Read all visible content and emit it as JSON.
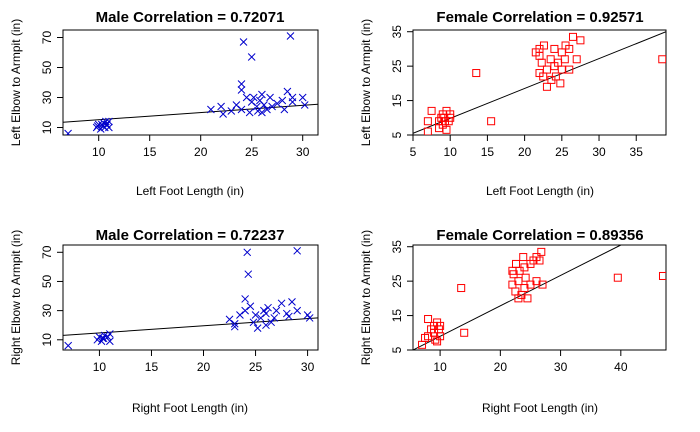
{
  "chart_data": [
    {
      "type": "scatter",
      "title": "Male Correlation = 0.72071",
      "xlabel": "Left Foot Length (in)",
      "ylabel": "Left Elbow to Armpit (in)",
      "xlim": [
        6.5,
        31.5
      ],
      "ylim": [
        5,
        75
      ],
      "xticks": [
        10,
        15,
        20,
        25,
        30
      ],
      "yticks": [
        10,
        30,
        50,
        70
      ],
      "marker": "x",
      "color": "#0000cc",
      "points": [
        [
          7,
          6
        ],
        [
          9.8,
          10
        ],
        [
          10,
          12
        ],
        [
          10.2,
          9
        ],
        [
          10.4,
          11
        ],
        [
          10.5,
          13
        ],
        [
          10.6,
          10
        ],
        [
          10.8,
          12
        ],
        [
          11,
          14
        ],
        [
          11,
          10
        ],
        [
          10.3,
          12
        ],
        [
          9.9,
          11
        ],
        [
          10.7,
          14
        ],
        [
          21,
          22
        ],
        [
          22,
          24
        ],
        [
          22.2,
          19
        ],
        [
          23,
          21
        ],
        [
          23.5,
          25
        ],
        [
          24,
          22
        ],
        [
          24,
          35
        ],
        [
          24,
          39
        ],
        [
          24.2,
          67
        ],
        [
          24.5,
          30
        ],
        [
          24.8,
          20
        ],
        [
          25,
          27
        ],
        [
          25,
          57
        ],
        [
          25.2,
          30
        ],
        [
          25.5,
          24
        ],
        [
          25.6,
          21
        ],
        [
          25.8,
          28
        ],
        [
          26,
          32
        ],
        [
          26,
          20
        ],
        [
          26.2,
          25
        ],
        [
          26.5,
          22
        ],
        [
          26.8,
          30
        ],
        [
          27,
          24
        ],
        [
          27.5,
          26
        ],
        [
          28,
          28
        ],
        [
          28.2,
          22
        ],
        [
          28.5,
          34
        ],
        [
          28.8,
          71
        ],
        [
          29,
          30
        ],
        [
          29,
          27
        ],
        [
          30,
          30
        ],
        [
          30.2,
          25
        ]
      ],
      "fit": [
        [
          6.5,
          13.5
        ],
        [
          31.5,
          25.5
        ]
      ]
    },
    {
      "type": "scatter",
      "title": "Female Correlation = 0.92571",
      "xlabel": "Left Foot Length (in)",
      "ylabel": "Left Elbow to Armpit (in)",
      "xlim": [
        5,
        39
      ],
      "ylim": [
        5,
        35.5
      ],
      "xticks": [
        5,
        10,
        15,
        20,
        25,
        30,
        35
      ],
      "yticks": [
        5,
        15,
        25,
        35
      ],
      "marker": "square",
      "color": "#ff0000",
      "points": [
        [
          7,
          6
        ],
        [
          7,
          9
        ],
        [
          7.5,
          12
        ],
        [
          8.5,
          9
        ],
        [
          8.5,
          7
        ],
        [
          9,
          11
        ],
        [
          9,
          8
        ],
        [
          9.2,
          10
        ],
        [
          9.3,
          9
        ],
        [
          9.5,
          6.5
        ],
        [
          9.5,
          12
        ],
        [
          9.8,
          9
        ],
        [
          10,
          10
        ],
        [
          10,
          11
        ],
        [
          8.8,
          10
        ],
        [
          13.5,
          23
        ],
        [
          15.5,
          9
        ],
        [
          21.5,
          29
        ],
        [
          22,
          28
        ],
        [
          22,
          30
        ],
        [
          22,
          23
        ],
        [
          22.3,
          26
        ],
        [
          22.5,
          22
        ],
        [
          22.6,
          31
        ],
        [
          23,
          24
        ],
        [
          23,
          19
        ],
        [
          23.5,
          27
        ],
        [
          23.6,
          21
        ],
        [
          24,
          25
        ],
        [
          24,
          30
        ],
        [
          24.2,
          22
        ],
        [
          24.5,
          26
        ],
        [
          24.8,
          20
        ],
        [
          25,
          29
        ],
        [
          25,
          24
        ],
        [
          25.4,
          27
        ],
        [
          25.5,
          31
        ],
        [
          26,
          30
        ],
        [
          26,
          24
        ],
        [
          26.5,
          33.5
        ],
        [
          27,
          27
        ],
        [
          27.5,
          32.5
        ],
        [
          38.5,
          27
        ]
      ],
      "fit": [
        [
          5,
          5.5
        ],
        [
          39,
          35
        ]
      ]
    },
    {
      "type": "scatter",
      "title": "Male Correlation = 0.72237",
      "xlabel": "Right Foot Length (in)",
      "ylabel": "Right Elbow to Armpit (in)",
      "xlim": [
        6.5,
        31
      ],
      "ylim": [
        3,
        75
      ],
      "xticks": [
        10,
        15,
        20,
        25,
        30
      ],
      "yticks": [
        10,
        30,
        50,
        70
      ],
      "marker": "x",
      "color": "#0000cc",
      "points": [
        [
          7,
          6
        ],
        [
          9.8,
          10
        ],
        [
          10,
          12
        ],
        [
          10.2,
          9
        ],
        [
          10.4,
          11
        ],
        [
          10.5,
          13
        ],
        [
          10.8,
          12
        ],
        [
          11,
          14
        ],
        [
          11,
          9
        ],
        [
          10.3,
          11
        ],
        [
          22.5,
          24
        ],
        [
          23,
          21
        ],
        [
          23,
          19
        ],
        [
          23.5,
          27
        ],
        [
          24,
          30
        ],
        [
          24,
          38
        ],
        [
          24.2,
          70
        ],
        [
          24.3,
          55
        ],
        [
          24.5,
          33
        ],
        [
          24.8,
          22
        ],
        [
          25,
          27
        ],
        [
          25.2,
          18
        ],
        [
          25.5,
          25
        ],
        [
          25.8,
          30
        ],
        [
          26,
          20
        ],
        [
          26,
          28
        ],
        [
          26.2,
          32
        ],
        [
          26.5,
          22
        ],
        [
          26.8,
          25
        ],
        [
          27,
          30
        ],
        [
          27.5,
          35
        ],
        [
          28,
          28
        ],
        [
          28.2,
          26
        ],
        [
          28.5,
          36
        ],
        [
          29,
          71
        ],
        [
          29,
          30
        ],
        [
          30,
          27
        ],
        [
          30.2,
          25
        ]
      ],
      "fit": [
        [
          6.5,
          13
        ],
        [
          31,
          25
        ]
      ]
    },
    {
      "type": "scatter",
      "title": "Female Correlation = 0.89356",
      "xlabel": "Right Foot Length (in)",
      "ylabel": "Right Elbow to Armpit (in)",
      "xlim": [
        5.5,
        47.5
      ],
      "ylim": [
        5,
        35.5
      ],
      "xticks": [
        10,
        20,
        30,
        40
      ],
      "yticks": [
        5,
        15,
        25,
        35
      ],
      "marker": "square",
      "color": "#ff0000",
      "points": [
        [
          7,
          6.5
        ],
        [
          7.5,
          8.5
        ],
        [
          8,
          14
        ],
        [
          8,
          9
        ],
        [
          8.5,
          11
        ],
        [
          9,
          12
        ],
        [
          9,
          10
        ],
        [
          9.2,
          8
        ],
        [
          9.5,
          13
        ],
        [
          9.5,
          7.5
        ],
        [
          9.8,
          11
        ],
        [
          10,
          12
        ],
        [
          10,
          9
        ],
        [
          13.5,
          23
        ],
        [
          14,
          10
        ],
        [
          22,
          28
        ],
        [
          22,
          24
        ],
        [
          22.2,
          27
        ],
        [
          22.5,
          22
        ],
        [
          22.6,
          30
        ],
        [
          23,
          20
        ],
        [
          23,
          25
        ],
        [
          23.2,
          28
        ],
        [
          23.5,
          21
        ],
        [
          23.8,
          32
        ],
        [
          24,
          23
        ],
        [
          24,
          29
        ],
        [
          24.2,
          26
        ],
        [
          24.5,
          20
        ],
        [
          25,
          30
        ],
        [
          25,
          24
        ],
        [
          25.5,
          31
        ],
        [
          26,
          25
        ],
        [
          26,
          32
        ],
        [
          26.5,
          31
        ],
        [
          26.8,
          33.5
        ],
        [
          27,
          24
        ],
        [
          39.5,
          26
        ],
        [
          47,
          26.5
        ]
      ],
      "fit": [
        [
          5.5,
          5
        ],
        [
          40,
          35.5
        ]
      ]
    }
  ]
}
